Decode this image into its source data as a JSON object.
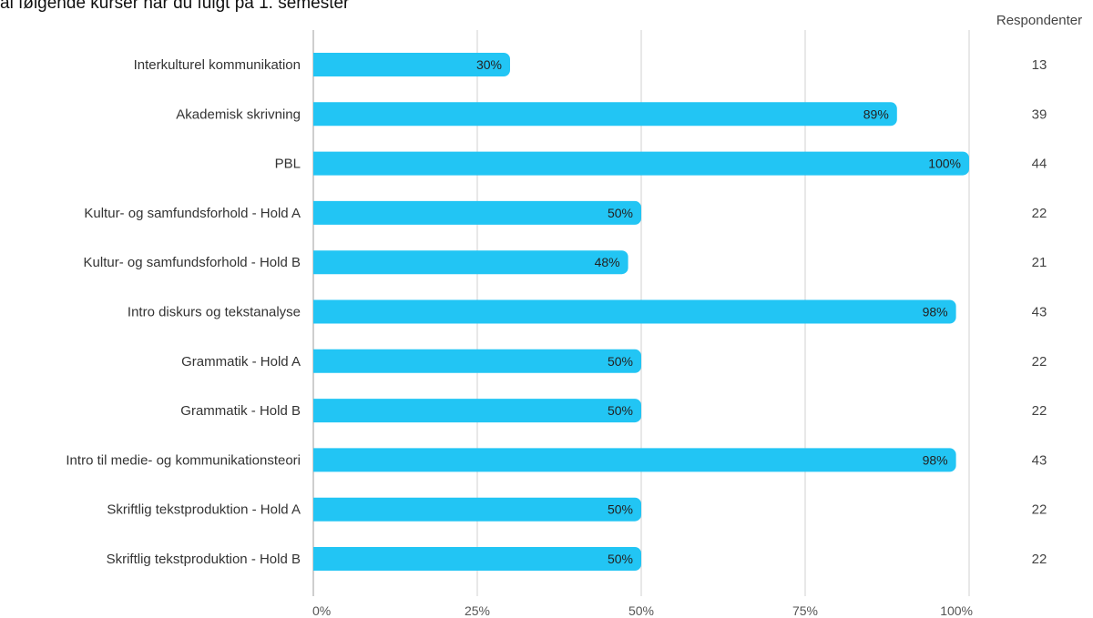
{
  "chart_data": {
    "type": "bar",
    "orientation": "horizontal",
    "title": "al følgende kurser har du fulgt på 1. semester",
    "categories": [
      "Interkulturel kommunikation",
      "Akademisk skrivning",
      "PBL",
      "Kultur- og samfundsforhold - Hold A",
      "Kultur- og samfundsforhold - Hold B",
      "Intro diskurs og tekstanalyse",
      "Grammatik - Hold A",
      "Grammatik - Hold B",
      "Intro til medie- og kommunikationsteori",
      "Skriftlig tekstproduktion - Hold A",
      "Skriftlig tekstproduktion - Hold B"
    ],
    "values": [
      30,
      89,
      100,
      50,
      48,
      98,
      50,
      50,
      98,
      50,
      50
    ],
    "value_labels": [
      "30%",
      "89%",
      "100%",
      "50%",
      "48%",
      "98%",
      "50%",
      "50%",
      "98%",
      "50%",
      "50%"
    ],
    "respondents_header": "Respondenter",
    "respondents": [
      13,
      39,
      44,
      22,
      21,
      43,
      22,
      22,
      43,
      22,
      22
    ],
    "xlim": [
      0,
      100
    ],
    "xticks": [
      0,
      25,
      50,
      75,
      100
    ],
    "xtick_labels": [
      "0%",
      "25%",
      "50%",
      "75%",
      "100%"
    ],
    "grid": true,
    "bar_color": "#22c5f4"
  }
}
